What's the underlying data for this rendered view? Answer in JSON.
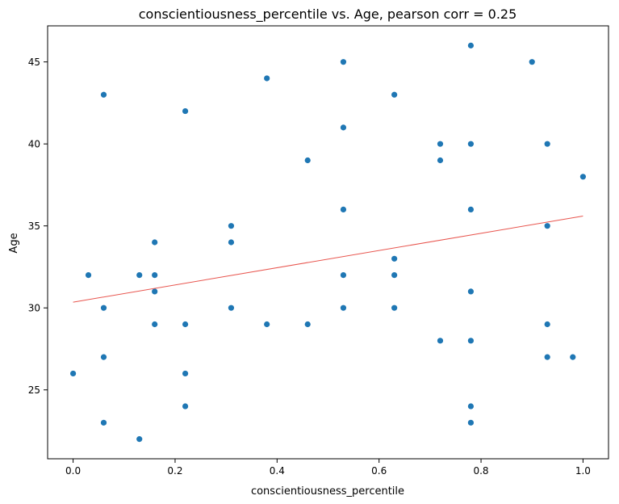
{
  "chart_data": {
    "type": "scatter",
    "title": "conscientiousness_percentile vs. Age, pearson corr = 0.25",
    "xlabel": "conscientiousness_percentile",
    "ylabel": "Age",
    "xlim": [
      -0.05,
      1.05
    ],
    "ylim": [
      20.8,
      47.2
    ],
    "xticks": [
      0.0,
      0.2,
      0.4,
      0.6,
      0.8,
      1.0
    ],
    "xtick_labels": [
      "0.0",
      "0.2",
      "0.4",
      "0.6",
      "0.8",
      "1.0"
    ],
    "yticks": [
      25,
      30,
      35,
      40,
      45
    ],
    "ytick_labels": [
      "25",
      "30",
      "35",
      "40",
      "45"
    ],
    "point_color": "#1f77b4",
    "trend_color": "#e8554e",
    "trendline": {
      "x": [
        0.0,
        1.0
      ],
      "y": [
        30.35,
        35.6
      ]
    },
    "points": [
      {
        "x": 0.0,
        "y": 26
      },
      {
        "x": 0.03,
        "y": 32
      },
      {
        "x": 0.06,
        "y": 43
      },
      {
        "x": 0.06,
        "y": 30
      },
      {
        "x": 0.06,
        "y": 27
      },
      {
        "x": 0.06,
        "y": 23
      },
      {
        "x": 0.13,
        "y": 32
      },
      {
        "x": 0.13,
        "y": 22
      },
      {
        "x": 0.16,
        "y": 34
      },
      {
        "x": 0.16,
        "y": 32
      },
      {
        "x": 0.16,
        "y": 31
      },
      {
        "x": 0.16,
        "y": 29
      },
      {
        "x": 0.22,
        "y": 42
      },
      {
        "x": 0.22,
        "y": 29
      },
      {
        "x": 0.22,
        "y": 26
      },
      {
        "x": 0.22,
        "y": 24
      },
      {
        "x": 0.31,
        "y": 35
      },
      {
        "x": 0.31,
        "y": 34
      },
      {
        "x": 0.31,
        "y": 30
      },
      {
        "x": 0.38,
        "y": 44
      },
      {
        "x": 0.38,
        "y": 29
      },
      {
        "x": 0.46,
        "y": 39
      },
      {
        "x": 0.46,
        "y": 29
      },
      {
        "x": 0.53,
        "y": 45
      },
      {
        "x": 0.53,
        "y": 41
      },
      {
        "x": 0.53,
        "y": 36
      },
      {
        "x": 0.53,
        "y": 32
      },
      {
        "x": 0.53,
        "y": 30
      },
      {
        "x": 0.63,
        "y": 43
      },
      {
        "x": 0.63,
        "y": 33
      },
      {
        "x": 0.63,
        "y": 32
      },
      {
        "x": 0.63,
        "y": 30
      },
      {
        "x": 0.72,
        "y": 40
      },
      {
        "x": 0.72,
        "y": 39
      },
      {
        "x": 0.72,
        "y": 28
      },
      {
        "x": 0.78,
        "y": 46
      },
      {
        "x": 0.78,
        "y": 40
      },
      {
        "x": 0.78,
        "y": 36
      },
      {
        "x": 0.78,
        "y": 31
      },
      {
        "x": 0.78,
        "y": 28
      },
      {
        "x": 0.78,
        "y": 24
      },
      {
        "x": 0.78,
        "y": 23
      },
      {
        "x": 0.9,
        "y": 45
      },
      {
        "x": 0.93,
        "y": 40
      },
      {
        "x": 0.93,
        "y": 35
      },
      {
        "x": 0.93,
        "y": 29
      },
      {
        "x": 0.93,
        "y": 27
      },
      {
        "x": 0.98,
        "y": 27
      },
      {
        "x": 1.0,
        "y": 38
      }
    ]
  }
}
